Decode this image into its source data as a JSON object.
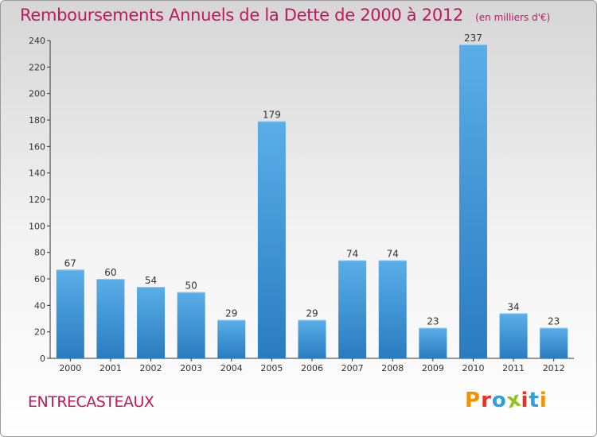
{
  "header": {
    "title": "Remboursements Annuels de la Dette de 2000 à 2012",
    "unit": "(en milliers d'€)"
  },
  "footer": {
    "place": "ENTRECASTEAUX",
    "logo": "Proxiti",
    "logo_colors": [
      "#f39200",
      "#e6332a",
      "#2d9fd9",
      "#95c11f",
      "#e6332a",
      "#2d9fd9",
      "#f39200"
    ]
  },
  "colors": {
    "title": "#c2185b",
    "bar_top": "#5aaee8",
    "bar_bottom": "#2a7cc0",
    "axis": "#333333"
  },
  "chart_data": {
    "type": "bar",
    "title": "Remboursements Annuels de la Dette de 2000 à 2012",
    "categories": [
      "2000",
      "2001",
      "2002",
      "2003",
      "2004",
      "2005",
      "2006",
      "2007",
      "2008",
      "2009",
      "2010",
      "2011",
      "2012"
    ],
    "values": [
      67,
      60,
      54,
      50,
      29,
      179,
      29,
      74,
      74,
      23,
      237,
      34,
      23
    ],
    "ylim": [
      0,
      240
    ],
    "yticks": [
      0,
      20,
      40,
      60,
      80,
      100,
      120,
      140,
      160,
      180,
      200,
      220,
      240
    ],
    "grid": false,
    "data_labels": true
  }
}
